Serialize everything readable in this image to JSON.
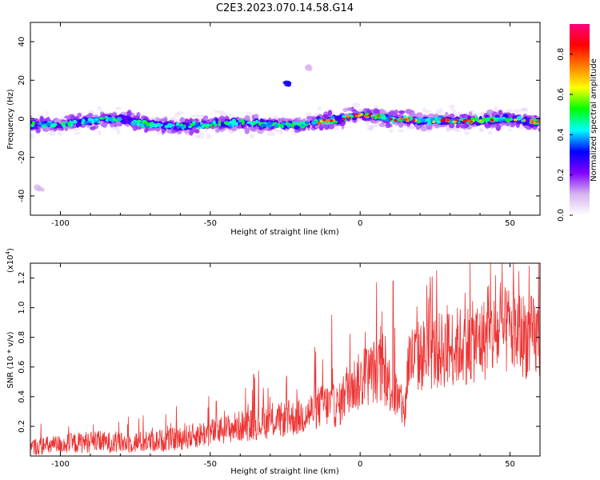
{
  "title": "C2E3.2023.070.14.58.G14",
  "chart_data": [
    {
      "type": "heatmap",
      "xlabel": "Height of straight line (km)",
      "ylabel": "Frequency (Hz)",
      "xlim": [
        -110,
        60
      ],
      "ylim": [
        -50,
        50
      ],
      "x_ticks": [
        -100,
        -50,
        0,
        50
      ],
      "y_ticks": [
        40,
        20,
        0,
        -20,
        -40
      ],
      "trace_center": [
        {
          "x": -110,
          "y": -3
        },
        {
          "x": -100,
          "y": -3
        },
        {
          "x": -90,
          "y": -1
        },
        {
          "x": -80,
          "y": 0
        },
        {
          "x": -70,
          "y": -3
        },
        {
          "x": -60,
          "y": -4
        },
        {
          "x": -50,
          "y": -3
        },
        {
          "x": -40,
          "y": -2
        },
        {
          "x": -30,
          "y": -3
        },
        {
          "x": -20,
          "y": -3
        },
        {
          "x": -10,
          "y": -1
        },
        {
          "x": 0,
          "y": 2
        },
        {
          "x": 10,
          "y": 0
        },
        {
          "x": 20,
          "y": -1
        },
        {
          "x": 30,
          "y": -1
        },
        {
          "x": 40,
          "y": -1
        },
        {
          "x": 50,
          "y": 0
        },
        {
          "x": 60,
          "y": -2
        }
      ],
      "features": [
        {
          "x": -24,
          "y": 18,
          "amplitude": 0.3
        },
        {
          "x": -17,
          "y": 27,
          "amplitude": 0.1
        },
        {
          "x": -107,
          "y": -36,
          "amplitude": 0.1
        }
      ],
      "colorbar": {
        "label": "Normalized spectral amplitude",
        "range": [
          0,
          0.95
        ],
        "ticks": [
          0.0,
          0.2,
          0.4,
          0.6,
          0.8
        ],
        "tick_labels": [
          "0.0",
          "0.2",
          "0.4",
          "0.6",
          "0.8"
        ],
        "colors": [
          "#ffffff",
          "#d6b3f0",
          "#8000ff",
          "#0000ff",
          "#00ffff",
          "#00ff00",
          "#ffff00",
          "#ff8000",
          "#ff0000",
          "#ff007f"
        ]
      }
    },
    {
      "type": "line",
      "xlabel": "Height of straight line (km)",
      "ylabel": "SNR (10 * v/v)",
      "y_multiplier": "(x10",
      "y_multiplier_exp": "4",
      "y_multiplier_close": ")",
      "xlim": [
        -110,
        60
      ],
      "ylim": [
        0,
        1.3
      ],
      "x_ticks": [
        -100,
        -50,
        0,
        50
      ],
      "y_ticks": [
        0.2,
        0.4,
        0.6,
        0.8,
        1.0,
        1.2
      ],
      "color": "#ee3333",
      "series": [
        {
          "baseline": [
            {
              "x": -110,
              "y": 0.05
            },
            {
              "x": -100,
              "y": 0.07
            },
            {
              "x": -90,
              "y": 0.09
            },
            {
              "x": -80,
              "y": 0.08
            },
            {
              "x": -70,
              "y": 0.09
            },
            {
              "x": -60,
              "y": 0.11
            },
            {
              "x": -50,
              "y": 0.15
            },
            {
              "x": -40,
              "y": 0.19
            },
            {
              "x": -30,
              "y": 0.22
            },
            {
              "x": -20,
              "y": 0.25
            },
            {
              "x": -12,
              "y": 0.33
            },
            {
              "x": -7,
              "y": 0.32
            },
            {
              "x": -4,
              "y": 0.45
            },
            {
              "x": 0,
              "y": 0.48
            },
            {
              "x": 5,
              "y": 0.56
            },
            {
              "x": 9,
              "y": 0.5
            },
            {
              "x": 12,
              "y": 0.38
            },
            {
              "x": 15,
              "y": 0.28
            },
            {
              "x": 16,
              "y": 0.62
            },
            {
              "x": 20,
              "y": 0.65
            },
            {
              "x": 30,
              "y": 0.7
            },
            {
              "x": 40,
              "y": 0.75
            },
            {
              "x": 50,
              "y": 0.82
            },
            {
              "x": 55,
              "y": 0.78
            },
            {
              "x": 60,
              "y": 0.76
            }
          ],
          "peaks": [
            {
              "x": -80.5,
              "y": 0.23
            },
            {
              "x": -58.5,
              "y": 0.22
            },
            {
              "x": -48.0,
              "y": 0.37
            },
            {
              "x": -35.5,
              "y": 0.55
            },
            {
              "x": -24.5,
              "y": 0.54
            },
            {
              "x": -12.5,
              "y": 0.65
            },
            {
              "x": -9.5,
              "y": 0.95
            },
            {
              "x": 2.0,
              "y": 0.72
            },
            {
              "x": 7.5,
              "y": 0.82
            },
            {
              "x": 11.0,
              "y": 1.18
            },
            {
              "x": 25.5,
              "y": 1.25
            },
            {
              "x": 35.0,
              "y": 1.1
            },
            {
              "x": 42.5,
              "y": 1.14
            },
            {
              "x": 59.5,
              "y": 1.3
            }
          ]
        }
      ]
    }
  ]
}
